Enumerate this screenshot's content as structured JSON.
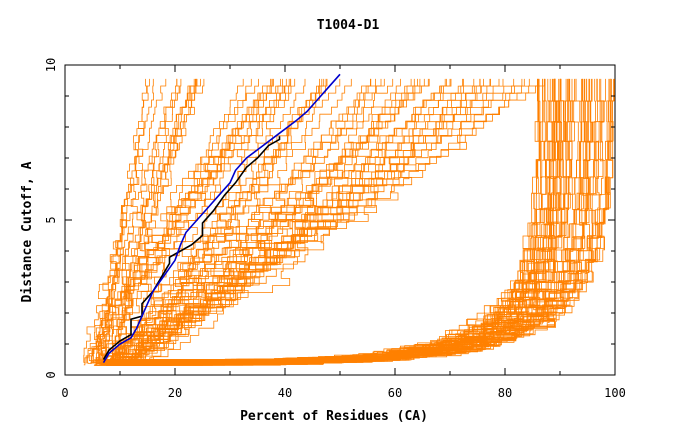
{
  "chart_data": {
    "type": "line",
    "title": "T1004-D1",
    "xlabel": "Percent of Residues (CA)",
    "ylabel": "Distance Cutoff, A",
    "xlim": [
      0,
      100
    ],
    "ylim": [
      0,
      10
    ],
    "x_ticks": [
      0,
      20,
      40,
      60,
      80,
      100
    ],
    "x_tick_labels": [
      "0",
      "20",
      "40",
      "60",
      "80",
      "100"
    ],
    "y_ticks": [
      0,
      5,
      10
    ],
    "y_tick_labels": [
      "0",
      "5",
      "10"
    ],
    "grid": false,
    "legend": "none",
    "colors": {
      "background_curves": "#ff8000",
      "highlight_black": "#000000",
      "highlight_blue": "#0000cc"
    },
    "highlight_series": [
      {
        "color": "#000000",
        "points": [
          [
            7,
            0.5
          ],
          [
            8,
            0.8
          ],
          [
            10,
            1.1
          ],
          [
            12,
            1.3
          ],
          [
            12,
            1.8
          ],
          [
            14,
            1.9
          ],
          [
            14,
            2.3
          ],
          [
            16,
            2.7
          ],
          [
            17,
            3.0
          ],
          [
            18,
            3.3
          ],
          [
            19,
            3.6
          ],
          [
            19,
            3.8
          ],
          [
            21,
            4.0
          ],
          [
            23,
            4.2
          ],
          [
            25,
            4.5
          ],
          [
            25,
            4.9
          ],
          [
            27,
            5.3
          ],
          [
            29,
            5.8
          ],
          [
            31,
            6.2
          ],
          [
            33,
            6.7
          ],
          [
            35,
            7.0
          ],
          [
            37,
            7.4
          ],
          [
            39,
            7.6
          ],
          [
            39,
            7.7
          ]
        ]
      },
      {
        "color": "#0000cc",
        "points": [
          [
            7,
            0.4
          ],
          [
            8,
            0.7
          ],
          [
            10,
            1.0
          ],
          [
            12,
            1.2
          ],
          [
            13,
            1.5
          ],
          [
            14,
            1.9
          ],
          [
            15,
            2.3
          ],
          [
            16,
            2.7
          ],
          [
            18,
            3.2
          ],
          [
            20,
            3.7
          ],
          [
            21,
            4.2
          ],
          [
            22,
            4.6
          ],
          [
            24,
            5.0
          ],
          [
            26,
            5.4
          ],
          [
            28,
            5.8
          ],
          [
            30,
            6.2
          ],
          [
            31,
            6.6
          ],
          [
            33,
            7.0
          ],
          [
            36,
            7.4
          ],
          [
            39,
            7.8
          ],
          [
            42,
            8.2
          ],
          [
            44,
            8.5
          ],
          [
            46,
            8.9
          ],
          [
            48,
            9.3
          ],
          [
            50,
            9.7
          ]
        ]
      }
    ],
    "background_groups": [
      {
        "name_hint": "steep",
        "count": 26,
        "x_at_0": [
          3,
          9
        ],
        "x_at_top": [
          15,
          42
        ]
      },
      {
        "name_hint": "middle",
        "count": 44,
        "x_at_0": [
          5,
          13
        ],
        "x_at_top": [
          40,
          88
        ]
      },
      {
        "name_hint": "flat",
        "count": 60,
        "x_at_0": [
          5,
          12
        ],
        "x_at_top": [
          86,
          100
        ]
      }
    ]
  }
}
